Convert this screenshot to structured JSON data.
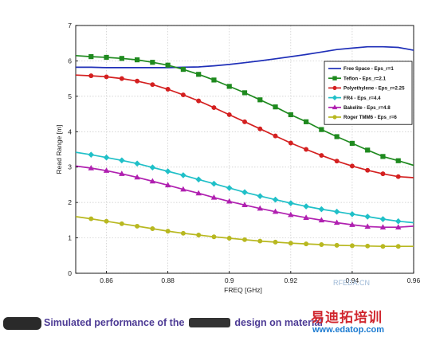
{
  "chart_data": {
    "type": "line",
    "xlabel": "FREQ [GHz]",
    "ylabel": "Read Range [m]",
    "xlim": [
      0.85,
      0.96
    ],
    "ylim": [
      0,
      7
    ],
    "xticks": [
      "0.86",
      "0.88",
      "0.9",
      "0.92",
      "0.94",
      "0.96"
    ],
    "yticks": [
      "0",
      "1",
      "2",
      "3",
      "4",
      "5",
      "6",
      "7"
    ],
    "grid": true,
    "legend_position": "top-right",
    "x": [
      0.85,
      0.855,
      0.86,
      0.865,
      0.87,
      0.875,
      0.88,
      0.885,
      0.89,
      0.895,
      0.9,
      0.905,
      0.91,
      0.915,
      0.92,
      0.925,
      0.93,
      0.935,
      0.94,
      0.945,
      0.95,
      0.955,
      0.96
    ],
    "series": [
      {
        "name": "Free Space - Eps_r=1",
        "color": "#1f2fb8",
        "marker": "none",
        "values": [
          5.82,
          5.82,
          5.81,
          5.81,
          5.81,
          5.81,
          5.81,
          5.82,
          5.83,
          5.86,
          5.9,
          5.95,
          6.0,
          6.06,
          6.12,
          6.18,
          6.25,
          6.32,
          6.36,
          6.4,
          6.4,
          6.38,
          6.3
        ]
      },
      {
        "name": "Teflon - Eps_r=2.1",
        "color": "#1f8a1f",
        "marker": "square",
        "values": [
          6.15,
          6.12,
          6.1,
          6.07,
          6.03,
          5.96,
          5.88,
          5.76,
          5.62,
          5.46,
          5.28,
          5.1,
          4.9,
          4.7,
          4.48,
          4.28,
          4.06,
          3.86,
          3.67,
          3.48,
          3.3,
          3.18,
          3.05
        ]
      },
      {
        "name": "Polyethylene - Eps_r=2.25",
        "color": "#d42020",
        "marker": "circle",
        "values": [
          5.6,
          5.58,
          5.55,
          5.5,
          5.43,
          5.33,
          5.2,
          5.04,
          4.87,
          4.68,
          4.48,
          4.28,
          4.08,
          3.88,
          3.68,
          3.5,
          3.33,
          3.17,
          3.03,
          2.91,
          2.81,
          2.73,
          2.7
        ]
      },
      {
        "name": "FR4 - Eps_r=4.4",
        "color": "#20c0c8",
        "marker": "diamond",
        "values": [
          3.42,
          3.35,
          3.27,
          3.19,
          3.1,
          2.99,
          2.88,
          2.77,
          2.65,
          2.53,
          2.41,
          2.29,
          2.18,
          2.08,
          1.98,
          1.89,
          1.81,
          1.74,
          1.67,
          1.6,
          1.53,
          1.47,
          1.43
        ]
      },
      {
        "name": "Bakelite - Eps_r=4.8",
        "color": "#b020b0",
        "marker": "triangle",
        "values": [
          3.03,
          2.97,
          2.9,
          2.81,
          2.71,
          2.6,
          2.49,
          2.37,
          2.26,
          2.14,
          2.03,
          1.93,
          1.83,
          1.74,
          1.65,
          1.57,
          1.5,
          1.43,
          1.37,
          1.32,
          1.3,
          1.3,
          1.33
        ]
      },
      {
        "name": "Roger TMM6 - Eps_r=6",
        "color": "#b8b820",
        "marker": "circle",
        "values": [
          1.6,
          1.54,
          1.47,
          1.4,
          1.33,
          1.26,
          1.19,
          1.13,
          1.08,
          1.03,
          0.99,
          0.95,
          0.91,
          0.88,
          0.85,
          0.83,
          0.81,
          0.79,
          0.78,
          0.77,
          0.76,
          0.76,
          0.76
        ]
      }
    ]
  },
  "caption": {
    "part1": "Simulated performance of the",
    "part2": "design on material"
  },
  "watermark": {
    "logo": "易迪拓培训",
    "site": "www.edatop.com",
    "corner": "RFEDA.CN"
  }
}
